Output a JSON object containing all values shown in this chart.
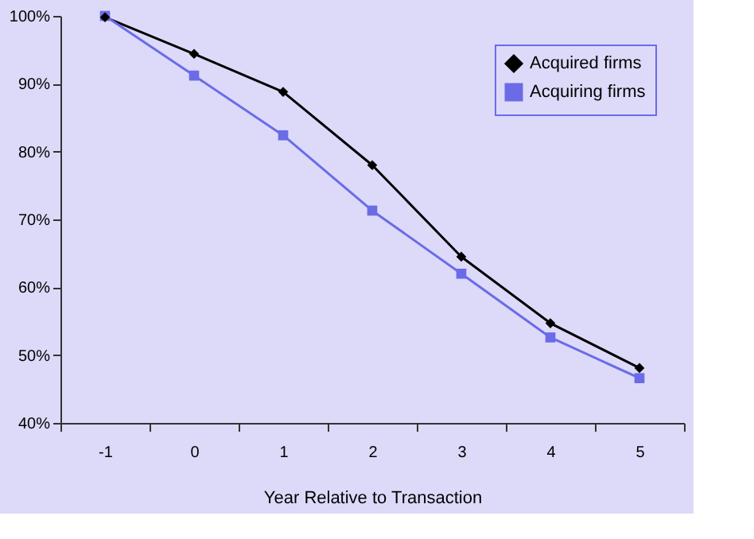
{
  "chart_data": {
    "type": "line",
    "xlabel": "Year Relative to Transaction",
    "categories": [
      "-1",
      "0",
      "1",
      "2",
      "3",
      "4",
      "5"
    ],
    "series": [
      {
        "name": "Acquired firms",
        "color": "#000000",
        "marker": "diamond",
        "values": [
          99.8,
          94.4,
          88.8,
          78.0,
          64.5,
          54.7,
          48.1
        ]
      },
      {
        "name": "Acquiring firms",
        "color": "#6b6be8",
        "marker": "square",
        "values": [
          100,
          91.2,
          82.4,
          71.3,
          62.0,
          52.6,
          46.6
        ]
      }
    ],
    "ylim": [
      40,
      100
    ],
    "yticks": [
      {
        "value": 40,
        "label": "40%"
      },
      {
        "value": 50,
        "label": "50%"
      },
      {
        "value": 60,
        "label": "60%"
      },
      {
        "value": 70,
        "label": "70%"
      },
      {
        "value": 80,
        "label": "80%"
      },
      {
        "value": 90,
        "label": "90%"
      },
      {
        "value": 100,
        "label": "100%"
      }
    ],
    "grid": false,
    "legend": "top right",
    "line_style": "solid"
  }
}
